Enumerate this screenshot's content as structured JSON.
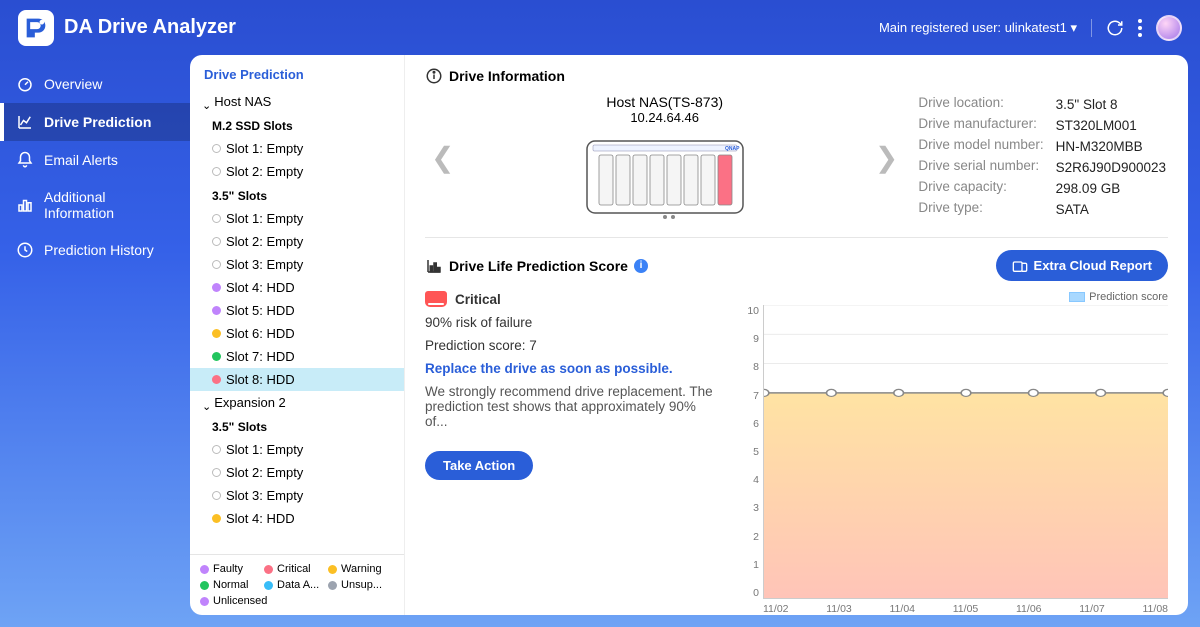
{
  "header": {
    "app_title": "DA Drive Analyzer",
    "user_label": "Main registered user:",
    "user_name": "ulinkatest1"
  },
  "nav": {
    "items": [
      {
        "icon": "gauge",
        "label": "Overview"
      },
      {
        "icon": "chart-line",
        "label": "Drive Prediction",
        "active": true
      },
      {
        "icon": "bell",
        "label": "Email Alerts"
      },
      {
        "icon": "bar",
        "label": "Additional Information"
      },
      {
        "icon": "clock",
        "label": "Prediction History"
      }
    ]
  },
  "tree": {
    "title": "Drive Prediction",
    "hosts": [
      {
        "name": "Host NAS",
        "groups": [
          {
            "name": "M.2 SSD Slots",
            "slots": [
              {
                "label": "Slot 1: Empty",
                "status": "empty"
              },
              {
                "label": "Slot 2: Empty",
                "status": "empty"
              }
            ]
          },
          {
            "name": "3.5\" Slots",
            "slots": [
              {
                "label": "Slot 1: Empty",
                "status": "empty"
              },
              {
                "label": "Slot 2: Empty",
                "status": "empty"
              },
              {
                "label": "Slot 3: Empty",
                "status": "empty"
              },
              {
                "label": "Slot 4: HDD",
                "status": "faulty"
              },
              {
                "label": "Slot 5: HDD",
                "status": "faulty"
              },
              {
                "label": "Slot 6: HDD",
                "status": "warning"
              },
              {
                "label": "Slot 7: HDD",
                "status": "normal"
              },
              {
                "label": "Slot 8: HDD",
                "status": "critical",
                "selected": true
              }
            ]
          }
        ]
      },
      {
        "name": "Expansion 2",
        "groups": [
          {
            "name": "3.5\" Slots",
            "slots": [
              {
                "label": "Slot 1: Empty",
                "status": "empty"
              },
              {
                "label": "Slot 2: Empty",
                "status": "empty"
              },
              {
                "label": "Slot 3: Empty",
                "status": "empty"
              },
              {
                "label": "Slot 4: HDD",
                "status": "warning"
              }
            ]
          }
        ]
      }
    ],
    "legend": [
      {
        "label": "Faulty",
        "color": "#c084fc"
      },
      {
        "label": "Critical",
        "color": "#fb7185"
      },
      {
        "label": "Warning",
        "color": "#fbbf24"
      },
      {
        "label": "Normal",
        "color": "#22c55e"
      },
      {
        "label": "Data A...",
        "color": "#38bdf8"
      },
      {
        "label": "Unsup...",
        "color": "#9ca3af"
      },
      {
        "label": "Unlicensed",
        "color": "#c084fc"
      }
    ],
    "status_colors": {
      "faulty": "#c084fc",
      "critical": "#fb7185",
      "warning": "#fbbf24",
      "normal": "#22c55e",
      "data": "#38bdf8",
      "unsup": "#9ca3af",
      "unlicensed": "#c084fc"
    }
  },
  "drive_info": {
    "section_title": "Drive Information",
    "device_name": "Host NAS(TS-873)",
    "device_ip": "10.24.64.46",
    "props": [
      {
        "k": "Drive location:",
        "v": "3.5\" Slot 8"
      },
      {
        "k": "Drive manufacturer:",
        "v": "ST320LM001"
      },
      {
        "k": "Drive model number:",
        "v": "HN-M320MBB"
      },
      {
        "k": "Drive serial number:",
        "v": "S2R6J90D900023"
      },
      {
        "k": "Drive capacity:",
        "v": "298.09 GB"
      },
      {
        "k": "Drive type:",
        "v": "SATA"
      }
    ],
    "bay_colors": [
      "#f5f5f5",
      "#f5f5f5",
      "#f5f5f5",
      "#f5f5f5",
      "#f5f5f5",
      "#f5f5f5",
      "#f5f5f5",
      "#fb7185"
    ]
  },
  "prediction": {
    "section_title": "Drive Life Prediction Score",
    "extra_report_label": "Extra Cloud Report",
    "status_label": "Critical",
    "risk_line": "90% risk of failure",
    "score_line": "Prediction score: 7",
    "replace_line": "Replace the drive as soon as possible.",
    "detail_text": "We strongly recommend drive replacement. The prediction test shows that approximately 90% of...",
    "take_action_label": "Take Action",
    "chart": {
      "type": "area",
      "legend_label": "Prediction score",
      "y_ticks": [
        10,
        9,
        8,
        7,
        6,
        5,
        4,
        3,
        2,
        1,
        0
      ],
      "ylim": [
        0,
        10
      ],
      "x_labels": [
        "11/02",
        "11/03",
        "11/04",
        "11/05",
        "11/06",
        "11/07",
        "11/08"
      ],
      "values": [
        7,
        7,
        7,
        7,
        7,
        7,
        7
      ],
      "line_color": "#888888",
      "marker_fill": "#ffffff",
      "marker_stroke": "#888888",
      "gradient_top": "#ffe3a3",
      "gradient_bottom": "#ffc4b8",
      "grid_color": "#e8e8e8",
      "legend_swatch": "#a8d8ff"
    }
  }
}
